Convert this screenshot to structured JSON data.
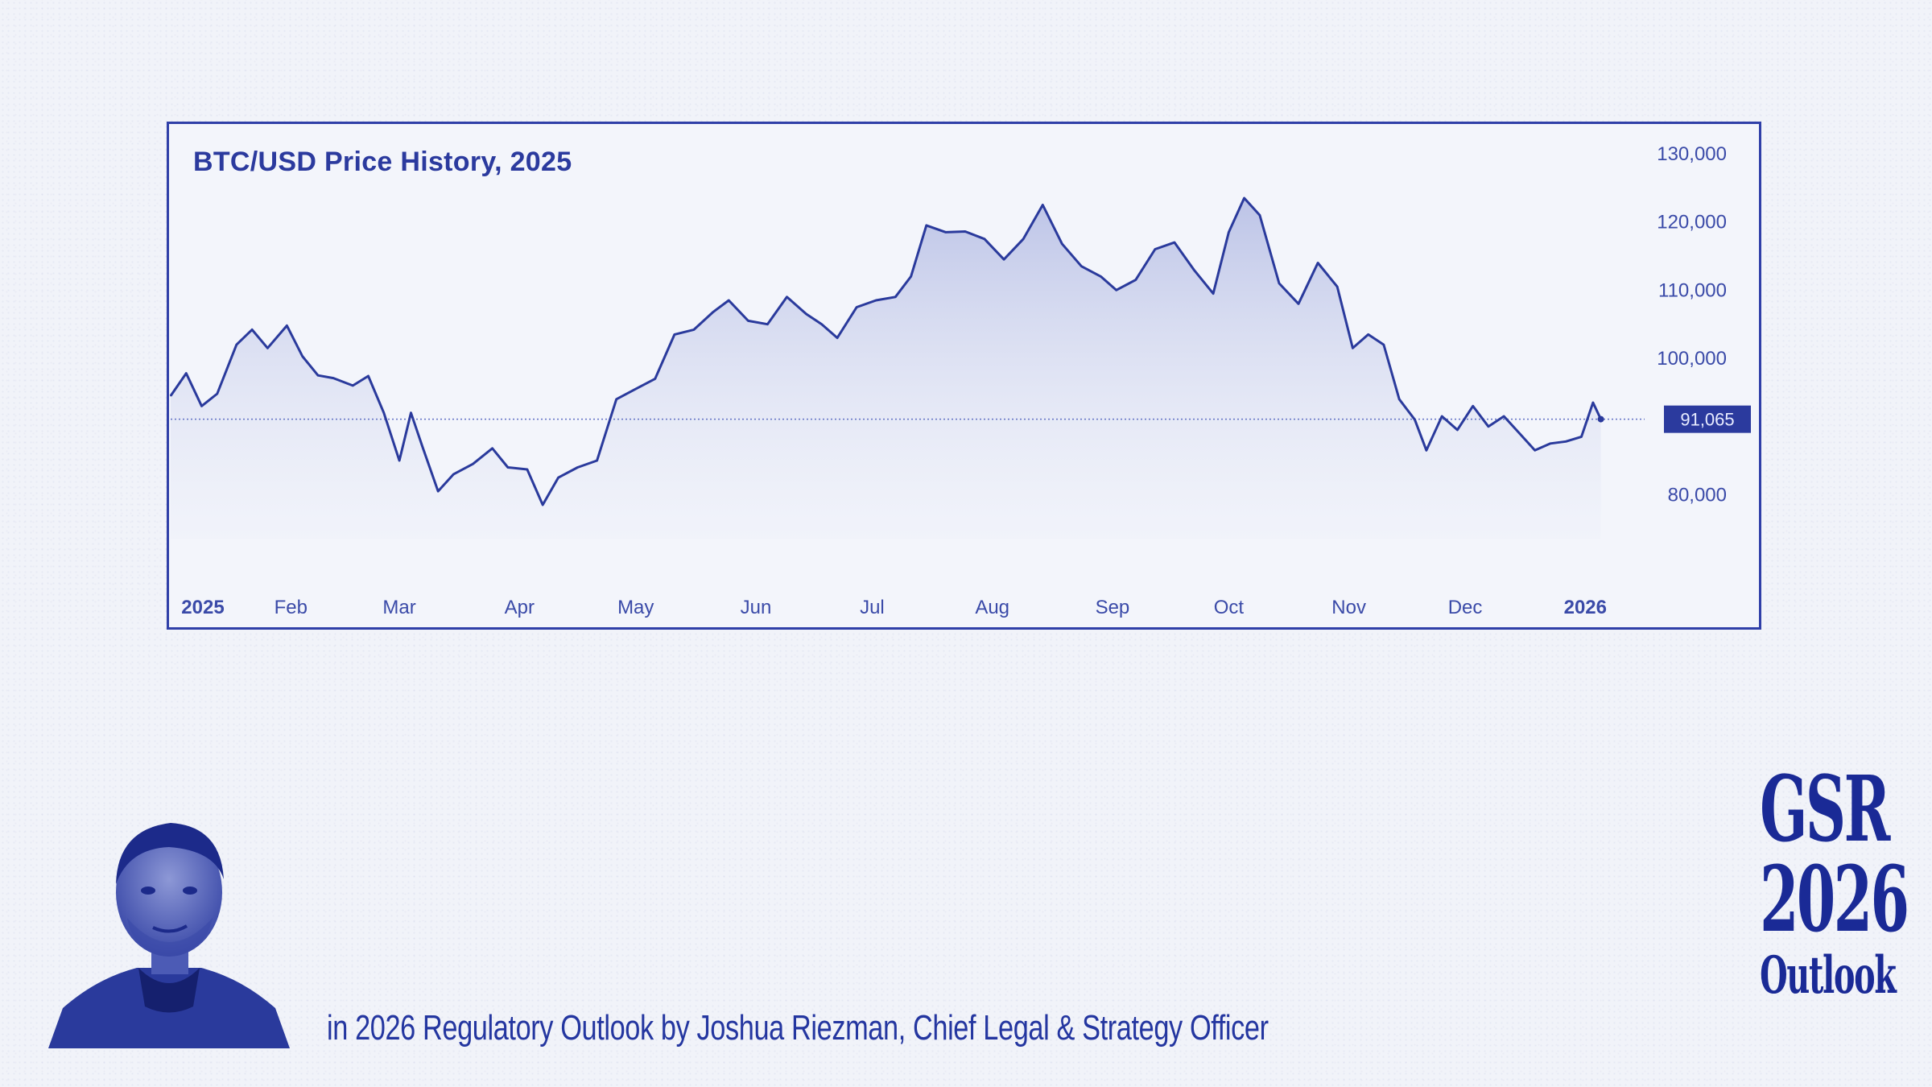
{
  "chart_data": {
    "type": "area",
    "title": "BTC/USD Price History, 2025",
    "xlabel": "",
    "ylabel": "",
    "y_ticks": [
      130000,
      120000,
      110000,
      100000,
      80000
    ],
    "y_tick_labels": [
      "130,000",
      "120,000",
      "110,000",
      "100,000",
      "80,000"
    ],
    "ylim": [
      70000,
      130000
    ],
    "x_ticks": [
      "2025",
      "Feb",
      "Mar",
      "Apr",
      "May",
      "Jun",
      "Jul",
      "Aug",
      "Sep",
      "Oct",
      "Nov",
      "Dec",
      "2026"
    ],
    "x_ticks_bold": [
      "2025",
      "2026"
    ],
    "last_value": 91065,
    "last_value_label": "91,065",
    "reference_line": 91065,
    "grid": false,
    "legend": "none",
    "series": [
      {
        "x": [
          "2025-01-01",
          "2025-01-05",
          "2025-01-09",
          "2025-01-13",
          "2025-01-18",
          "2025-01-22",
          "2025-01-26",
          "2025-01-31",
          "2025-02-04",
          "2025-02-08",
          "2025-02-12",
          "2025-02-17",
          "2025-02-21",
          "2025-02-25",
          "2025-03-01",
          "2025-03-04",
          "2025-03-07",
          "2025-03-11",
          "2025-03-15",
          "2025-03-20",
          "2025-03-25",
          "2025-03-29",
          "2025-04-03",
          "2025-04-07",
          "2025-04-11",
          "2025-04-16",
          "2025-04-21",
          "2025-04-26",
          "2025-05-01",
          "2025-05-06",
          "2025-05-11",
          "2025-05-16",
          "2025-05-21",
          "2025-05-25",
          "2025-05-30",
          "2025-06-04",
          "2025-06-09",
          "2025-06-14",
          "2025-06-18",
          "2025-06-22",
          "2025-06-27",
          "2025-07-02",
          "2025-07-07",
          "2025-07-11",
          "2025-07-15",
          "2025-07-20",
          "2025-07-25",
          "2025-07-30",
          "2025-08-04",
          "2025-08-09",
          "2025-08-14",
          "2025-08-19",
          "2025-08-24",
          "2025-08-29",
          "2025-09-02",
          "2025-09-07",
          "2025-09-12",
          "2025-09-17",
          "2025-09-22",
          "2025-09-27",
          "2025-10-01",
          "2025-10-05",
          "2025-10-09",
          "2025-10-14",
          "2025-10-19",
          "2025-10-24",
          "2025-10-29",
          "2025-11-02",
          "2025-11-06",
          "2025-11-10",
          "2025-11-14",
          "2025-11-18",
          "2025-11-21",
          "2025-11-25",
          "2025-11-29",
          "2025-12-03",
          "2025-12-07",
          "2025-12-11",
          "2025-12-15",
          "2025-12-19",
          "2025-12-23",
          "2025-12-27",
          "2025-12-31",
          "2026-01-03",
          "2026-01-05"
        ],
        "values": [
          94500,
          97800,
          93000,
          94800,
          102000,
          104200,
          101500,
          104800,
          100300,
          97500,
          97100,
          96000,
          97400,
          92000,
          85000,
          92000,
          87000,
          80500,
          83000,
          84500,
          86800,
          84000,
          83700,
          78500,
          82500,
          84000,
          85000,
          94000,
          95500,
          97000,
          103500,
          104200,
          106800,
          108500,
          105500,
          105000,
          109000,
          106500,
          105000,
          103000,
          107500,
          108500,
          109000,
          112000,
          119500,
          118500,
          118600,
          117500,
          114500,
          117500,
          122500,
          116800,
          113500,
          112000,
          110000,
          111500,
          116000,
          117000,
          113000,
          109500,
          118500,
          123500,
          121000,
          111000,
          108000,
          114000,
          110500,
          101500,
          103500,
          102000,
          94000,
          91000,
          86500,
          91500,
          89500,
          93000,
          90000,
          91500,
          89000,
          86500,
          87500,
          87800,
          88500,
          93500,
          91065
        ]
      }
    ]
  },
  "footer": {
    "byline": "in 2026 Regulatory Outlook by Joshua Riezman, Chief Legal & Strategy Officer",
    "brand_line1": "GSR",
    "brand_line2": "2026",
    "brand_line3": "Outlook"
  },
  "colors": {
    "ink": "#2b3a9e",
    "background": "#f1f3f9",
    "fill_top": "#b9c0e3",
    "badge": "#2b3a9e"
  }
}
